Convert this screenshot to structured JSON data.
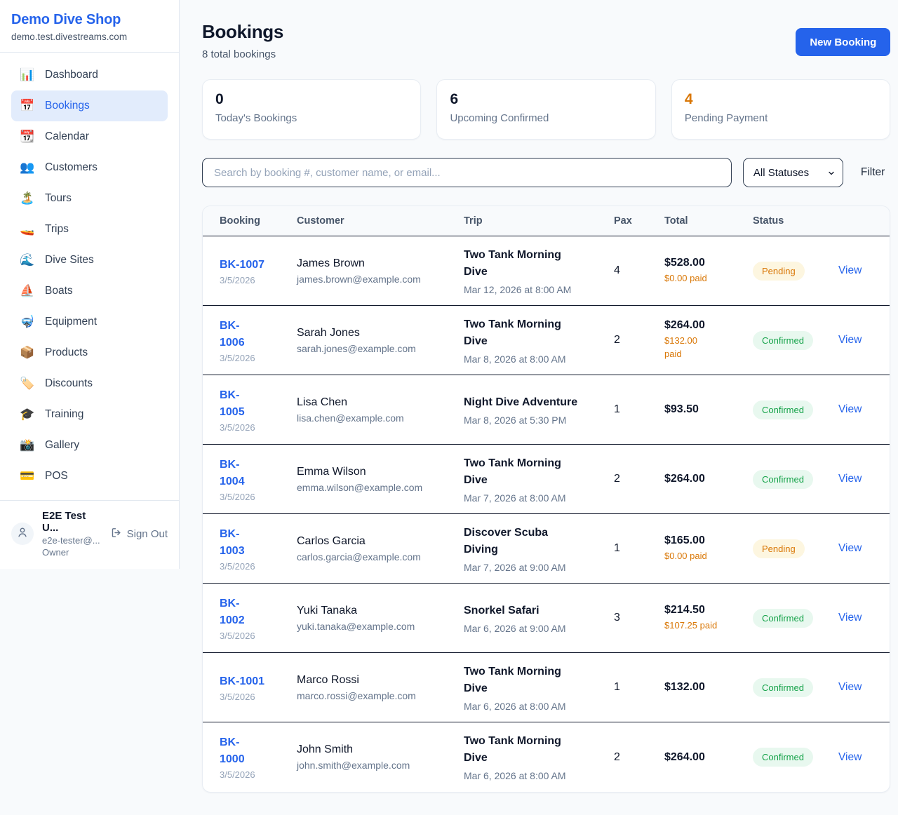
{
  "colors": {
    "brand_blue": "#2563eb",
    "pending_orange": "#d97706",
    "confirmed_green": "#16a34a",
    "pending_badge_bg": "#fdf6e0",
    "confirmed_badge_bg": "#e8f8ef"
  },
  "sidebar": {
    "brand": "Demo Dive Shop",
    "domain": "demo.test.divestreams.com",
    "nav": [
      {
        "icon_name": "bar-chart-icon",
        "glyph": "📊",
        "label": "Dashboard",
        "active": false
      },
      {
        "icon_name": "calendar-icon",
        "glyph": "📅",
        "label": "Bookings",
        "active": true
      },
      {
        "icon_name": "tearoff-calendar-icon",
        "glyph": "📆",
        "label": "Calendar",
        "active": false
      },
      {
        "icon_name": "people-icon",
        "glyph": "👥",
        "label": "Customers",
        "active": false
      },
      {
        "icon_name": "island-icon",
        "glyph": "🏝️",
        "label": "Tours",
        "active": false
      },
      {
        "icon_name": "speedboat-icon",
        "glyph": "🚤",
        "label": "Trips",
        "active": false
      },
      {
        "icon_name": "wave-icon",
        "glyph": "🌊",
        "label": "Dive Sites",
        "active": false
      },
      {
        "icon_name": "sailboat-icon",
        "glyph": "⛵",
        "label": "Boats",
        "active": false
      },
      {
        "icon_name": "diving-mask-icon",
        "glyph": "🤿",
        "label": "Equipment",
        "active": false
      },
      {
        "icon_name": "package-icon",
        "glyph": "📦",
        "label": "Products",
        "active": false
      },
      {
        "icon_name": "tag-icon",
        "glyph": "🏷️",
        "label": "Discounts",
        "active": false
      },
      {
        "icon_name": "graduation-cap-icon",
        "glyph": "🎓",
        "label": "Training",
        "active": false
      },
      {
        "icon_name": "camera-icon",
        "glyph": "📸",
        "label": "Gallery",
        "active": false
      },
      {
        "icon_name": "credit-card-icon",
        "glyph": "💳",
        "label": "POS",
        "active": false
      }
    ],
    "user": {
      "name": "E2E Test U...",
      "email": "e2e-tester@...",
      "role": "Owner",
      "sign_out_label": "Sign Out"
    }
  },
  "header": {
    "title": "Bookings",
    "subtitle": "8 total bookings",
    "new_booking_label": "New Booking"
  },
  "stats": [
    {
      "value": "0",
      "label": "Today's Bookings",
      "accent": null
    },
    {
      "value": "6",
      "label": "Upcoming Confirmed",
      "accent": null
    },
    {
      "value": "4",
      "label": "Pending Payment",
      "accent": "#d97706"
    }
  ],
  "filters": {
    "search_placeholder": "Search by booking #, customer name, or email...",
    "status_selected": "All Statuses",
    "filter_label": "Filter"
  },
  "table": {
    "columns": [
      "Booking",
      "Customer",
      "Trip",
      "Pax",
      "Total",
      "Status",
      ""
    ],
    "view_label": "View",
    "rows": [
      {
        "id": "BK-1007",
        "date": "3/5/2026",
        "customer": "James Brown",
        "email": "james.brown@example.com",
        "trip": "Two Tank Morning\nDive",
        "trip_time": "Mar 12, 2026 at 8:00 AM",
        "pax": "4",
        "total": "$528.00",
        "paid": "$0.00 paid",
        "status": "Pending"
      },
      {
        "id": "BK-\n1006",
        "date": "3/5/2026",
        "customer": "Sarah Jones",
        "email": "sarah.jones@example.com",
        "trip": "Two Tank Morning\nDive",
        "trip_time": "Mar 8, 2026 at 8:00 AM",
        "pax": "2",
        "total": "$264.00",
        "paid": "$132.00\npaid",
        "status": "Confirmed"
      },
      {
        "id": "BK-\n1005",
        "date": "3/5/2026",
        "customer": "Lisa Chen",
        "email": "lisa.chen@example.com",
        "trip": "Night Dive Adventure",
        "trip_time": "Mar 8, 2026 at 5:30 PM",
        "pax": "1",
        "total": "$93.50",
        "paid": "",
        "status": "Confirmed"
      },
      {
        "id": "BK-\n1004",
        "date": "3/5/2026",
        "customer": "Emma Wilson",
        "email": "emma.wilson@example.com",
        "trip": "Two Tank Morning\nDive",
        "trip_time": "Mar 7, 2026 at 8:00 AM",
        "pax": "2",
        "total": "$264.00",
        "paid": "",
        "status": "Confirmed"
      },
      {
        "id": "BK-\n1003",
        "date": "3/5/2026",
        "customer": "Carlos Garcia",
        "email": "carlos.garcia@example.com",
        "trip": "Discover Scuba\nDiving",
        "trip_time": "Mar 7, 2026 at 9:00 AM",
        "pax": "1",
        "total": "$165.00",
        "paid": "$0.00 paid",
        "status": "Pending"
      },
      {
        "id": "BK-\n1002",
        "date": "3/5/2026",
        "customer": "Yuki Tanaka",
        "email": "yuki.tanaka@example.com",
        "trip": "Snorkel Safari",
        "trip_time": "Mar 6, 2026 at 9:00 AM",
        "pax": "3",
        "total": "$214.50",
        "paid": "$107.25 paid",
        "status": "Confirmed"
      },
      {
        "id": "BK-1001",
        "date": "3/5/2026",
        "customer": "Marco Rossi",
        "email": "marco.rossi@example.com",
        "trip": "Two Tank Morning\nDive",
        "trip_time": "Mar 6, 2026 at 8:00 AM",
        "pax": "1",
        "total": "$132.00",
        "paid": "",
        "status": "Confirmed"
      },
      {
        "id": "BK-\n1000",
        "date": "3/5/2026",
        "customer": "John Smith",
        "email": "john.smith@example.com",
        "trip": "Two Tank Morning\nDive",
        "trip_time": "Mar 6, 2026 at 8:00 AM",
        "pax": "2",
        "total": "$264.00",
        "paid": "",
        "status": "Confirmed"
      }
    ]
  }
}
